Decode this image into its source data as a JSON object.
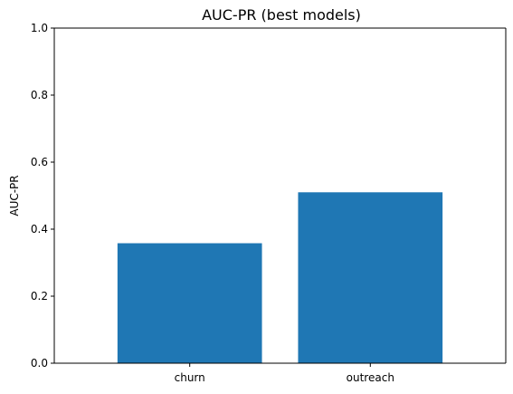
{
  "chart_data": {
    "type": "bar",
    "title": "AUC-PR (best models)",
    "xlabel": "",
    "ylabel": "AUC-PR",
    "categories": [
      "churn",
      "outreach"
    ],
    "values": [
      0.358,
      0.51
    ],
    "ylim": [
      0,
      1.0
    ],
    "yticks": [
      "0.0",
      "0.2",
      "0.4",
      "0.6",
      "0.8",
      "1.0"
    ],
    "ytick_values": [
      0,
      0.2,
      0.4,
      0.6,
      0.8,
      1.0
    ],
    "bar_color": "#1f77b4",
    "grid": false,
    "legend": "none"
  }
}
